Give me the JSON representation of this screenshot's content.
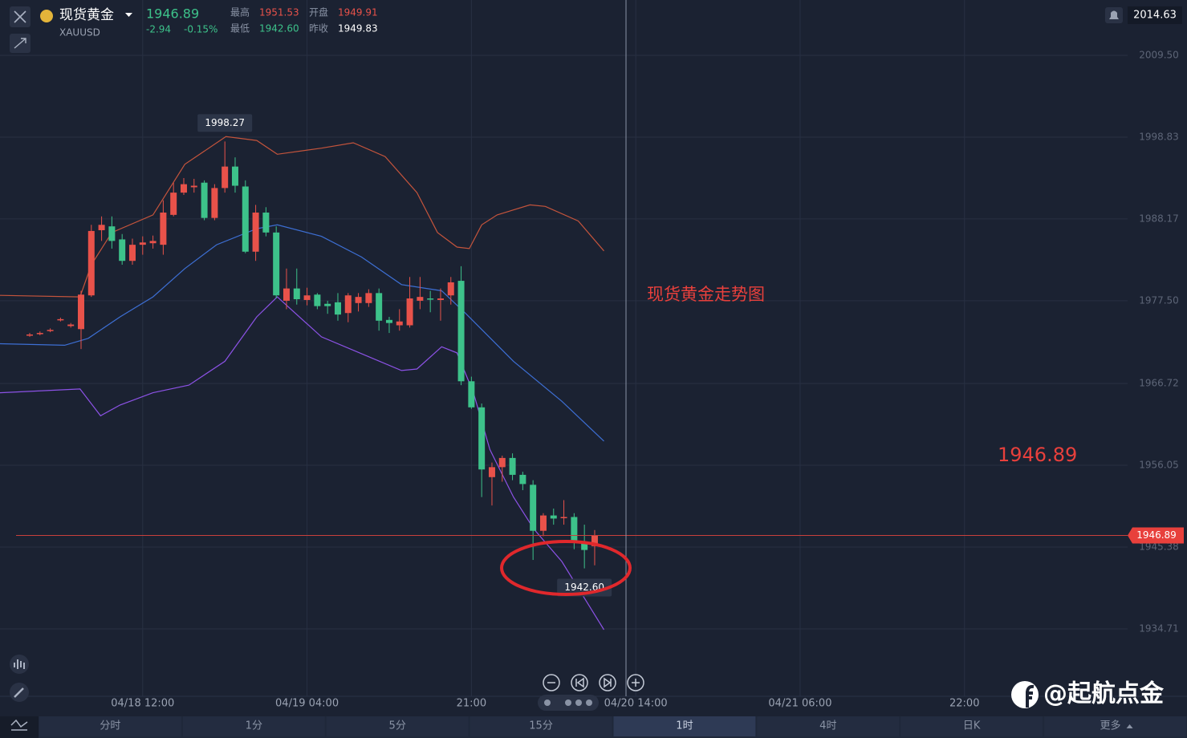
{
  "header": {
    "name": "现货黄金",
    "code": "XAUUSD",
    "price": "1946.89",
    "change": "-2.94",
    "change_pct": "-0.15%",
    "stats": [
      {
        "label": "最高",
        "value": "1951.53"
      },
      {
        "label": "开盘",
        "value": "1949.91"
      },
      {
        "label": "最低",
        "value": "1942.60"
      },
      {
        "label": "昨收",
        "value": "1949.83"
      }
    ],
    "top_price": "2014.63"
  },
  "tabs": [
    "分时",
    "1分",
    "5分",
    "15分",
    "1时",
    "4时",
    "日K",
    "更多"
  ],
  "watermark": "@起航点金",
  "chart_data": {
    "type": "candlestick",
    "title": "现货黄金走势图",
    "open": [
      1973.0,
      1973.2,
      1973.6,
      1975.0,
      1974.2,
      1973.8,
      1978.2,
      1986.7,
      1987.2,
      1985.5,
      1982.7,
      1984.8,
      1985.0,
      1984.8,
      1988.7,
      1991.6,
      1992.3,
      1992.9,
      1988.3,
      1992.2,
      1995.0,
      1992.4,
      1983.9,
      1989.0,
      1986.4,
      1977.5,
      1979.1,
      1977.6,
      1978.3,
      1977.1,
      1977.3,
      1975.9,
      1977.2,
      1977.2,
      1978.5,
      1975.0,
      1974.3,
      1974.3,
      1977.5,
      1977.8,
      1977.6,
      1978.2,
      1980.1,
      1967.0,
      1963.6,
      1954.5,
      1955.8,
      1957.0,
      1954.8,
      1953.5,
      1947.5,
      1949.5,
      1949.2,
      1949.3,
      1945.9,
      1945.5
    ],
    "high": [
      1973.3,
      1973.5,
      1973.9,
      1975.3,
      1974.6,
      1978.8,
      1987.4,
      1988.5,
      1988.5,
      1986.2,
      1985.6,
      1985.9,
      1986.0,
      1990.6,
      1992.9,
      1993.5,
      1993.4,
      1993.2,
      1992.7,
      1998.27,
      1996.2,
      1993.2,
      1990.0,
      1989.7,
      1987.2,
      1981.7,
      1981.7,
      1979.2,
      1978.5,
      1977.5,
      1978.5,
      1978.5,
      1978.5,
      1979.0,
      1979.1,
      1975.4,
      1976.4,
      1980.6,
      1980.6,
      1978.8,
      1979.1,
      1980.6,
      1982.0,
      1967.6,
      1964.1,
      1956.4,
      1957.3,
      1957.6,
      1955.2,
      1954.1,
      1949.8,
      1950.4,
      1951.5,
      1949.8,
      1948.3,
      1947.6
    ],
    "low": [
      1972.8,
      1973.0,
      1973.4,
      1974.8,
      1974.0,
      1971.2,
      1978.0,
      1985.3,
      1984.3,
      1982.2,
      1982.2,
      1983.5,
      1984.3,
      1983.5,
      1988.5,
      1991.3,
      1991.6,
      1988.0,
      1988.0,
      1991.6,
      1991.6,
      1983.7,
      1982.7,
      1985.9,
      1977.8,
      1976.4,
      1977.0,
      1976.9,
      1976.4,
      1975.8,
      1974.9,
      1974.7,
      1976.1,
      1976.7,
      1973.6,
      1973.3,
      1973.6,
      1974.0,
      1976.4,
      1976.0,
      1974.9,
      1977.0,
      1966.5,
      1963.4,
      1951.9,
      1950.8,
      1953.9,
      1954.1,
      1952.8,
      1943.7,
      1946.8,
      1948.3,
      1948.3,
      1945.1,
      1942.6,
      1943.0
    ],
    "close": [
      1973.1,
      1973.3,
      1973.7,
      1975.1,
      1974.4,
      1978.3,
      1986.6,
      1987.4,
      1985.3,
      1982.7,
      1984.8,
      1985.1,
      1985.3,
      1989.0,
      1991.6,
      1992.7,
      1992.5,
      1988.3,
      1992.2,
      1995.0,
      1992.5,
      1983.9,
      1989.0,
      1986.4,
      1978.2,
      1979.1,
      1977.7,
      1978.2,
      1976.8,
      1976.8,
      1975.7,
      1978.2,
      1978.0,
      1978.5,
      1974.9,
      1974.6,
      1974.8,
      1977.8,
      1978.0,
      1977.7,
      1977.8,
      1979.9,
      1967.0,
      1963.6,
      1955.5,
      1955.8,
      1957.0,
      1954.8,
      1953.6,
      1947.5,
      1949.5,
      1949.1,
      1949.3,
      1945.9,
      1945.0,
      1946.89
    ],
    "up_color": "#e8524a",
    "down_color": "#3dc28a",
    "lines": [
      {
        "color": "#c4543c",
        "x": [
          -2.9,
          4.9,
          6.0,
          8.0,
          12.0,
          15.1,
          19.1,
          22.1,
          24.1,
          28.4,
          31.5,
          34.6,
          37.7,
          39.7,
          41.6,
          42.8,
          44.0,
          45.5,
          48.7,
          50.2,
          53.4,
          55.9
        ],
        "values": [
          1978.2,
          1978.0,
          1982.2,
          1986.4,
          1988.7,
          1995.3,
          1998.9,
          1998.4,
          1996.6,
          1997.4,
          1998.1,
          1996.3,
          1991.6,
          1986.4,
          1984.5,
          1984.3,
          1987.4,
          1988.7,
          1990.0,
          1989.8,
          1987.9,
          1984.0
        ]
      },
      {
        "color": "#3d6fd4",
        "x": [
          -2.9,
          3.4,
          5.7,
          8.8,
          12.0,
          15.1,
          18.2,
          22.1,
          24.1,
          28.4,
          32.3,
          36.2,
          40.1,
          42.4,
          47.1,
          51.8,
          55.9
        ],
        "values": [
          1971.9,
          1971.7,
          1972.6,
          1975.4,
          1978.0,
          1981.7,
          1984.8,
          1986.9,
          1987.4,
          1985.9,
          1983.2,
          1979.6,
          1978.8,
          1975.9,
          1969.6,
          1964.4,
          1959.2
        ]
      },
      {
        "color": "#8c52e6",
        "x": [
          -2.9,
          4.9,
          6.9,
          8.8,
          12.0,
          15.5,
          19.0,
          22.1,
          24.1,
          28.4,
          33.0,
          36.2,
          37.7,
          40.1,
          41.6,
          43.2,
          44.8,
          47.1,
          49.1,
          51.8,
          55.9
        ],
        "values": [
          1965.5,
          1966.0,
          1962.5,
          1963.9,
          1965.5,
          1966.5,
          1969.6,
          1975.4,
          1978.0,
          1972.8,
          1970.2,
          1968.4,
          1968.6,
          1971.5,
          1970.7,
          1965.5,
          1958.1,
          1951.9,
          1947.7,
          1943.5,
          1934.6
        ]
      }
    ],
    "xlim": [
      -2.89,
      106.88
    ],
    "xticks": [
      {
        "value": 11,
        "label": "04/18 12:00"
      },
      {
        "value": 27,
        "label": "04/19 04:00"
      },
      {
        "value": 43,
        "label": "21:00"
      },
      {
        "value": 59,
        "label": "04/20 14:00"
      },
      {
        "value": 75,
        "label": "04/21 06:00"
      },
      {
        "value": 91,
        "label": "22:00"
      }
    ],
    "ylim": [
      1925.92,
      2016.72
    ],
    "yticks": [
      {
        "value": 2009.5,
        "label": "2009.50"
      },
      1998.83,
      1988.17,
      {
        "value": 1977.5,
        "label": "1977.50"
      },
      1966.72,
      1956.05,
      1945.38,
      1934.71
    ],
    "grid": true,
    "last_price": 1946.89,
    "high_label": 1998.27,
    "low_label": {
      "value": 1942.6,
      "label": "1942.60"
    }
  }
}
